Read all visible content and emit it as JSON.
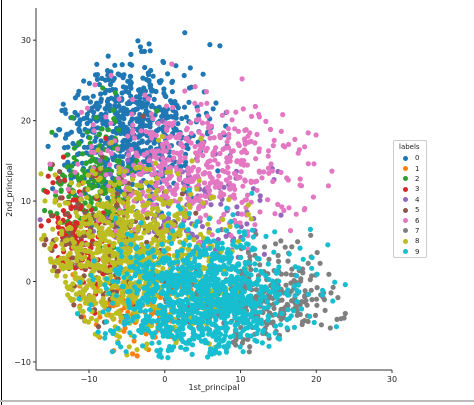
{
  "chart_data": {
    "type": "scatter",
    "xlabel": "1st_principal",
    "ylabel": "2nd_principal",
    "xlim": [
      -17,
      30
    ],
    "ylim": [
      -11,
      34
    ],
    "xticks": [
      -10,
      0,
      10,
      20,
      30
    ],
    "yticks": [
      -10,
      0,
      10,
      20,
      30
    ],
    "grid": false,
    "legend": {
      "title": "labels",
      "placement": "right",
      "entries": [
        "0",
        "1",
        "2",
        "3",
        "4",
        "5",
        "6",
        "7",
        "8",
        "9"
      ]
    },
    "series": [
      {
        "name": "0",
        "color": "#1f77b4",
        "center": [
          -5,
          19
        ],
        "spread": [
          5,
          4.5
        ],
        "approx_points": 700
      },
      {
        "name": "1",
        "color": "#ff7f0e",
        "center": [
          -4,
          -3
        ],
        "spread": [
          4,
          3
        ],
        "approx_points": 150
      },
      {
        "name": "2",
        "color": "#2ca02c",
        "center": [
          -9,
          12
        ],
        "spread": [
          3,
          4
        ],
        "approx_points": 200
      },
      {
        "name": "3",
        "color": "#d62728",
        "center": [
          -11,
          6
        ],
        "spread": [
          3,
          4
        ],
        "approx_points": 160
      },
      {
        "name": "4",
        "color": "#9467bd",
        "center": [
          3,
          8
        ],
        "spread": [
          6,
          4
        ],
        "approx_points": 140
      },
      {
        "name": "5",
        "color": "#8c564b",
        "center": [
          -7,
          4
        ],
        "spread": [
          5,
          5
        ],
        "approx_points": 200
      },
      {
        "name": "6",
        "color": "#e377c2",
        "center": [
          4,
          14
        ],
        "spread": [
          7,
          4
        ],
        "approx_points": 500
      },
      {
        "name": "7",
        "color": "#7f7f7f",
        "center": [
          13,
          -2
        ],
        "spread": [
          5,
          3
        ],
        "approx_points": 350
      },
      {
        "name": "8",
        "color": "#bcbd22",
        "center": [
          -5,
          3
        ],
        "spread": [
          6,
          5
        ],
        "approx_points": 900
      },
      {
        "name": "9",
        "color": "#17becf",
        "center": [
          5,
          -2
        ],
        "spread": [
          6,
          4
        ],
        "approx_points": 1100
      }
    ]
  }
}
